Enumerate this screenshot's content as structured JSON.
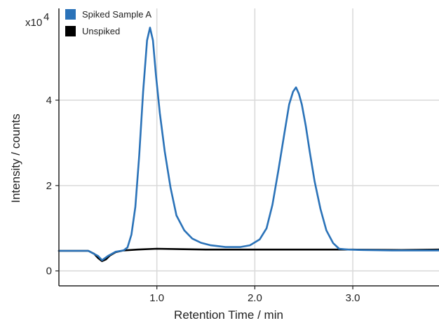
{
  "chart_data": {
    "type": "line",
    "title": "",
    "xlabel": "Retention Time / min",
    "ylabel": "Intensity / counts",
    "y_multiplier_label": "x10",
    "y_multiplier_exponent": "4",
    "xlim": [
      0,
      3.88
    ],
    "ylim": [
      -0.35,
      6.15
    ],
    "x_ticks": [
      1.0,
      2.0,
      3.0
    ],
    "x_tick_labels": [
      "1.0",
      "2.0",
      "3.0"
    ],
    "y_ticks": [
      0,
      2,
      4
    ],
    "y_tick_labels": [
      "0",
      "2",
      "4"
    ],
    "grid": true,
    "legend_position": "top-left",
    "series": [
      {
        "name": "Spiked Sample A",
        "color": "#2a72b8",
        "x": [
          0.0,
          0.3,
          0.4,
          0.44,
          0.5,
          0.58,
          0.66,
          0.7,
          0.74,
          0.78,
          0.82,
          0.86,
          0.9,
          0.93,
          0.96,
          0.99,
          1.03,
          1.08,
          1.14,
          1.2,
          1.28,
          1.36,
          1.45,
          1.55,
          1.7,
          1.85,
          1.95,
          2.05,
          2.12,
          2.18,
          2.24,
          2.3,
          2.35,
          2.39,
          2.42,
          2.45,
          2.48,
          2.52,
          2.56,
          2.61,
          2.67,
          2.73,
          2.8,
          2.86,
          2.95,
          3.1,
          3.4,
          3.88
        ],
        "y": [
          0.47,
          0.47,
          0.35,
          0.25,
          0.35,
          0.45,
          0.48,
          0.55,
          0.85,
          1.5,
          2.7,
          4.2,
          5.4,
          5.7,
          5.4,
          4.6,
          3.7,
          2.8,
          1.95,
          1.3,
          0.95,
          0.76,
          0.66,
          0.6,
          0.56,
          0.56,
          0.6,
          0.74,
          1.0,
          1.55,
          2.35,
          3.2,
          3.9,
          4.2,
          4.3,
          4.15,
          3.9,
          3.4,
          2.8,
          2.1,
          1.45,
          0.95,
          0.65,
          0.52,
          0.5,
          0.49,
          0.48,
          0.48
        ]
      },
      {
        "name": "Unspiked",
        "color": "#000000",
        "x": [
          0.0,
          0.3,
          0.36,
          0.4,
          0.44,
          0.48,
          0.52,
          0.58,
          0.66,
          0.8,
          1.0,
          1.5,
          2.0,
          2.5,
          3.0,
          3.5,
          3.88
        ],
        "y": [
          0.47,
          0.47,
          0.4,
          0.3,
          0.23,
          0.27,
          0.36,
          0.44,
          0.48,
          0.5,
          0.52,
          0.5,
          0.5,
          0.5,
          0.5,
          0.49,
          0.5
        ]
      }
    ]
  }
}
